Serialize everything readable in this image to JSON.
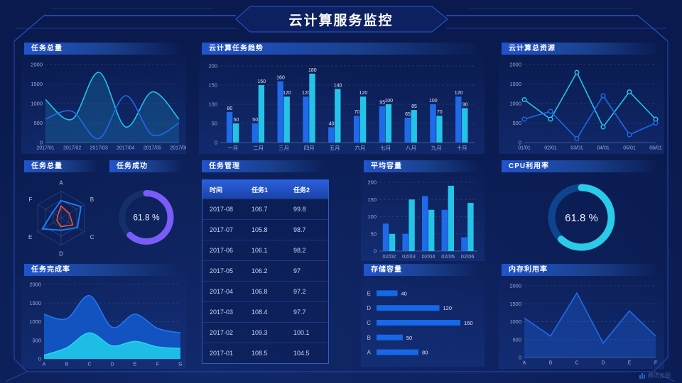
{
  "header": {
    "title": "云计算服务监控"
  },
  "watermark": {
    "label": "腾讯云图"
  },
  "colors": {
    "background": "#0a1a4e",
    "accent_blue": "#1f6ae8",
    "accent_cyan": "#24c3e8",
    "accent_purple": "#7a5cf8",
    "accent_orange": "#ff5330",
    "axis_text": "#9db0d8",
    "grid_line": "#33507f",
    "title_bar": "#2154cc"
  },
  "panels": {
    "task_total_line": {
      "title": "任务总量"
    },
    "cloud_task_trend": {
      "title": "云计算任务趋势"
    },
    "cloud_total_resources": {
      "title": "云计算总资源"
    },
    "task_total_radar": {
      "title": "任务总量"
    },
    "task_success": {
      "title": "任务成功",
      "value": "61.8 %"
    },
    "task_management": {
      "title": "任务管理",
      "columns": [
        "时间",
        "任务1",
        "任务2"
      ],
      "rows": [
        [
          "2017-08",
          "106.7",
          "99.8"
        ],
        [
          "2017-07",
          "105.8",
          "98.7"
        ],
        [
          "2017-06",
          "106.1",
          "98.2"
        ],
        [
          "2017-05",
          "106.2",
          "97"
        ],
        [
          "2017-04",
          "106.8",
          "97.2"
        ],
        [
          "2017-03",
          "108.4",
          "97.7"
        ],
        [
          "2017-02",
          "109.3",
          "100.1"
        ],
        [
          "2017-01",
          "108.5",
          "104.5"
        ]
      ]
    },
    "average_capacity": {
      "title": "平均容量"
    },
    "cpu_utilization": {
      "title": "CPU利用率",
      "value": "61.8 %"
    },
    "task_completion": {
      "title": "任务完成率"
    },
    "storage_capacity": {
      "title": "存储容量"
    },
    "memory_utilization": {
      "title": "内存利用率"
    }
  },
  "chart_data": [
    {
      "id": "task_total_line",
      "type": "line",
      "smooth": true,
      "title": "任务总量",
      "x": [
        "2017/01",
        "2017/02",
        "2017/03",
        "2017/04",
        "2017/05",
        "2017/06"
      ],
      "ylim": [
        0,
        2000
      ],
      "yticks": [
        0,
        500,
        1000,
        1500,
        2000
      ],
      "pad": {
        "l": 34,
        "r": 10,
        "t": 14,
        "b": 16
      },
      "series": [
        {
          "name": "cyan",
          "color": "#24c3e8",
          "area": true,
          "areaOpacity": 0.18,
          "values": [
            1100,
            600,
            1800,
            400,
            1300,
            600
          ]
        },
        {
          "name": "blue",
          "color": "#1f6ae8",
          "area": false,
          "values": [
            600,
            800,
            100,
            1200,
            200,
            500
          ]
        }
      ]
    },
    {
      "id": "cloud_task_trend",
      "type": "bar",
      "labels": true,
      "title": "云计算任务趋势",
      "categories": [
        "一月",
        "二月",
        "三月",
        "四月",
        "五月",
        "六月",
        "七月",
        "八月",
        "九月",
        "十月"
      ],
      "ylim": [
        0,
        200
      ],
      "yticks": [
        0,
        50,
        100,
        150,
        200
      ],
      "pad": {
        "l": 30,
        "r": 14,
        "t": 16,
        "b": 16
      },
      "series": [
        {
          "name": "blue",
          "color": "#1f6ae8",
          "values": [
            80,
            50,
            160,
            120,
            40,
            70,
            95,
            65,
            100,
            120
          ]
        },
        {
          "name": "cyan",
          "color": "#24c3e8",
          "values": [
            50,
            150,
            120,
            180,
            140,
            120,
            100,
            85,
            70,
            90
          ]
        }
      ]
    },
    {
      "id": "cloud_total_resources",
      "type": "line",
      "smooth": false,
      "markers": true,
      "title": "云计算总资源",
      "x": [
        "01/01",
        "02/01",
        "03/01",
        "04/01",
        "05/01",
        "06/01"
      ],
      "ylim": [
        0,
        2000
      ],
      "yticks": [
        0,
        500,
        1000,
        1500,
        2000
      ],
      "pad": {
        "l": 36,
        "r": 12,
        "t": 14,
        "b": 16
      },
      "series": [
        {
          "name": "cyan",
          "color": "#24c3e8",
          "values": [
            1100,
            600,
            1800,
            400,
            1300,
            600
          ]
        },
        {
          "name": "blue",
          "color": "#1f6ae8",
          "values": [
            600,
            800,
            100,
            1200,
            200,
            500
          ]
        }
      ]
    },
    {
      "id": "task_total_radar",
      "type": "radar",
      "title": "任务总量",
      "axes": [
        "A",
        "B",
        "C",
        "D",
        "E",
        "F"
      ],
      "max": 100,
      "series": [
        {
          "name": "blue",
          "color": "#1b7ef2",
          "width": 2,
          "values": [
            65,
            85,
            70,
            45,
            80,
            38
          ]
        },
        {
          "name": "orange",
          "color": "#ff5330",
          "width": 1.5,
          "values": [
            45,
            35,
            50,
            32,
            18,
            15
          ]
        }
      ]
    },
    {
      "id": "task_success_gauge",
      "type": "donut",
      "title": "任务成功",
      "value": 61.8,
      "label": "61.8 %",
      "color": "#7a5cf8",
      "track": "#143068",
      "r": 34,
      "width": 9,
      "fontSize": 12
    },
    {
      "id": "average_capacity",
      "type": "bar",
      "labels": false,
      "title": "平均容量",
      "categories": [
        "02/02",
        "02/03",
        "02/04",
        "02/05",
        "02/06"
      ],
      "ylim": [
        0,
        200
      ],
      "yticks": [
        0,
        50,
        100,
        150,
        200
      ],
      "pad": {
        "l": 26,
        "r": 10,
        "t": 14,
        "b": 14
      },
      "series": [
        {
          "name": "blue",
          "color": "#1f6ae8",
          "values": [
            80,
            50,
            160,
            120,
            40
          ]
        },
        {
          "name": "cyan",
          "color": "#24c3e8",
          "values": [
            50,
            150,
            120,
            190,
            140
          ]
        }
      ]
    },
    {
      "id": "cpu_gauge",
      "type": "donut",
      "title": "CPU利用率",
      "value": 61.8,
      "label": "61.8 %",
      "color": "#29cbe8",
      "track": "#0e448e",
      "r": 42,
      "width": 10,
      "fontSize": 15
    },
    {
      "id": "task_completion",
      "type": "line",
      "smooth": true,
      "title": "任务完成率",
      "x": [
        "A",
        "B",
        "C",
        "D",
        "E",
        "F",
        "G"
      ],
      "ylim": [
        0,
        2000
      ],
      "yticks": [
        0,
        500,
        1000,
        1500,
        2000
      ],
      "pad": {
        "l": 32,
        "r": 8,
        "t": 12,
        "b": 14
      },
      "series": [
        {
          "name": "blue-area",
          "color": "#2276f0",
          "fill": "#1257c8",
          "area": true,
          "areaOpacity": 0.92,
          "values": [
            1200,
            1080,
            1700,
            850,
            1200,
            820,
            700
          ]
        },
        {
          "name": "cyan-area",
          "color": "#2ad0f0",
          "fill": "#1fc3e8",
          "area": true,
          "areaOpacity": 0.95,
          "values": [
            100,
            300,
            700,
            350,
            470,
            320,
            280
          ]
        }
      ]
    },
    {
      "id": "storage_capacity",
      "type": "hbar",
      "title": "存储容量",
      "categories": [
        "E",
        "D",
        "C",
        "B",
        "A"
      ],
      "values": [
        40,
        120,
        160,
        50,
        80
      ],
      "max": 160,
      "color": "#1668e8"
    },
    {
      "id": "memory_utilization",
      "type": "line",
      "smooth": false,
      "title": "内存利用率",
      "x": [
        "A",
        "B",
        "C",
        "D",
        "E",
        "F"
      ],
      "ylim": [
        0,
        2000
      ],
      "yticks": [
        0,
        500,
        1000,
        1500,
        2000
      ],
      "pad": {
        "l": 36,
        "r": 12,
        "t": 14,
        "b": 16
      },
      "series": [
        {
          "name": "blue",
          "color": "#1f6ae8",
          "area": true,
          "areaOpacity": 0.32,
          "values": [
            1100,
            600,
            1800,
            400,
            1300,
            600
          ]
        }
      ]
    }
  ]
}
